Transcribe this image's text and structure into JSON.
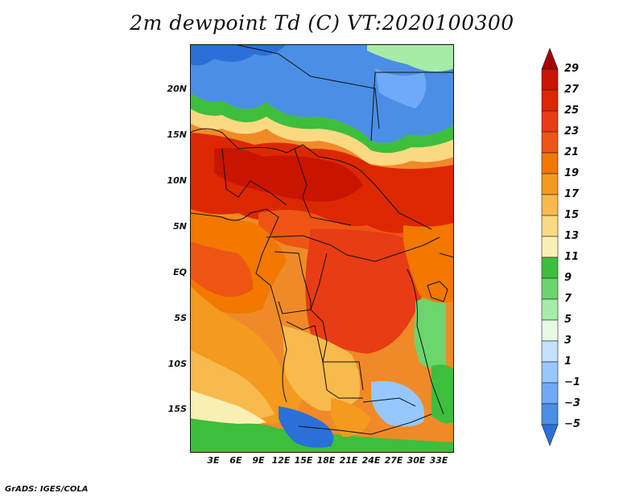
{
  "title": "2m dewpoint Td (C) VT:2020100300",
  "credit": "GrADS: IGES/COLA",
  "lat_labels": [
    "20N",
    "15N",
    "10N",
    "5N",
    "EQ",
    "5S",
    "10S",
    "15S"
  ],
  "lon_labels": [
    "3E",
    "6E",
    "9E",
    "12E",
    "15E",
    "18E",
    "21E",
    "24E",
    "27E",
    "30E",
    "33E"
  ],
  "colorbar": {
    "labels": [
      "29",
      "27",
      "25",
      "23",
      "21",
      "19",
      "17",
      "15",
      "13",
      "11",
      "9",
      "7",
      "5",
      "3",
      "1",
      "−1",
      "−3",
      "−5"
    ],
    "colors": [
      "#a50000",
      "#c81400",
      "#dc2800",
      "#e83c14",
      "#ee5514",
      "#f27800",
      "#f49a1e",
      "#f8ba4c",
      "#fbd982",
      "#fbf0b4",
      "#3dbe3d",
      "#6cd56c",
      "#a6eca6",
      "#e6fae6",
      "#c4e2ff",
      "#96c8ff",
      "#6eaaf8",
      "#4b8ee6",
      "#2a70d8"
    ]
  }
}
